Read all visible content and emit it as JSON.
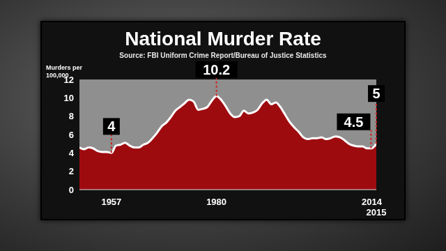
{
  "chart_data": {
    "type": "area",
    "title": "National Murder Rate",
    "subtitle": "Source: FBI Uniform Crime Report/Bureau of Justice Statistics",
    "y_label": "Murders per 100,000",
    "x": [
      1950,
      1951,
      1952,
      1953,
      1954,
      1955,
      1956,
      1957,
      1958,
      1959,
      1960,
      1961,
      1962,
      1963,
      1964,
      1965,
      1966,
      1967,
      1968,
      1969,
      1970,
      1971,
      1972,
      1973,
      1974,
      1975,
      1976,
      1977,
      1978,
      1979,
      1980,
      1981,
      1982,
      1983,
      1984,
      1985,
      1986,
      1987,
      1988,
      1989,
      1990,
      1991,
      1992,
      1993,
      1994,
      1995,
      1996,
      1997,
      1998,
      1999,
      2000,
      2001,
      2002,
      2003,
      2004,
      2005,
      2006,
      2007,
      2008,
      2009,
      2010,
      2011,
      2012,
      2013,
      2014,
      2015
    ],
    "values": [
      4.6,
      4.4,
      4.6,
      4.5,
      4.2,
      4.1,
      4.1,
      4.0,
      4.8,
      4.9,
      5.1,
      4.8,
      4.6,
      4.6,
      4.9,
      5.1,
      5.6,
      6.2,
      6.9,
      7.3,
      7.9,
      8.6,
      9.0,
      9.4,
      9.8,
      9.6,
      8.7,
      8.8,
      9.0,
      9.7,
      10.2,
      9.8,
      9.1,
      8.3,
      7.9,
      8.0,
      8.6,
      8.3,
      8.4,
      8.7,
      9.4,
      9.8,
      9.3,
      9.5,
      9.0,
      8.2,
      7.4,
      6.8,
      6.3,
      5.7,
      5.5,
      5.6,
      5.6,
      5.7,
      5.5,
      5.6,
      5.8,
      5.7,
      5.4,
      5.0,
      4.8,
      4.7,
      4.7,
      4.5,
      4.5,
      5.0
    ],
    "color": "#9e0b0f",
    "xlim": [
      1950,
      2015
    ],
    "xticks": [
      1957,
      1980,
      2014,
      2015
    ],
    "ylim": [
      0,
      12
    ],
    "yticks": [
      0,
      2,
      4,
      6,
      8,
      10,
      12
    ],
    "grid": false,
    "annotations": [
      {
        "x": 1957,
        "y": 4
      },
      {
        "x": 1980,
        "y": 10.2
      },
      {
        "x": 2014,
        "y": 4.5
      },
      {
        "x": 2015,
        "y": 5
      }
    ]
  }
}
